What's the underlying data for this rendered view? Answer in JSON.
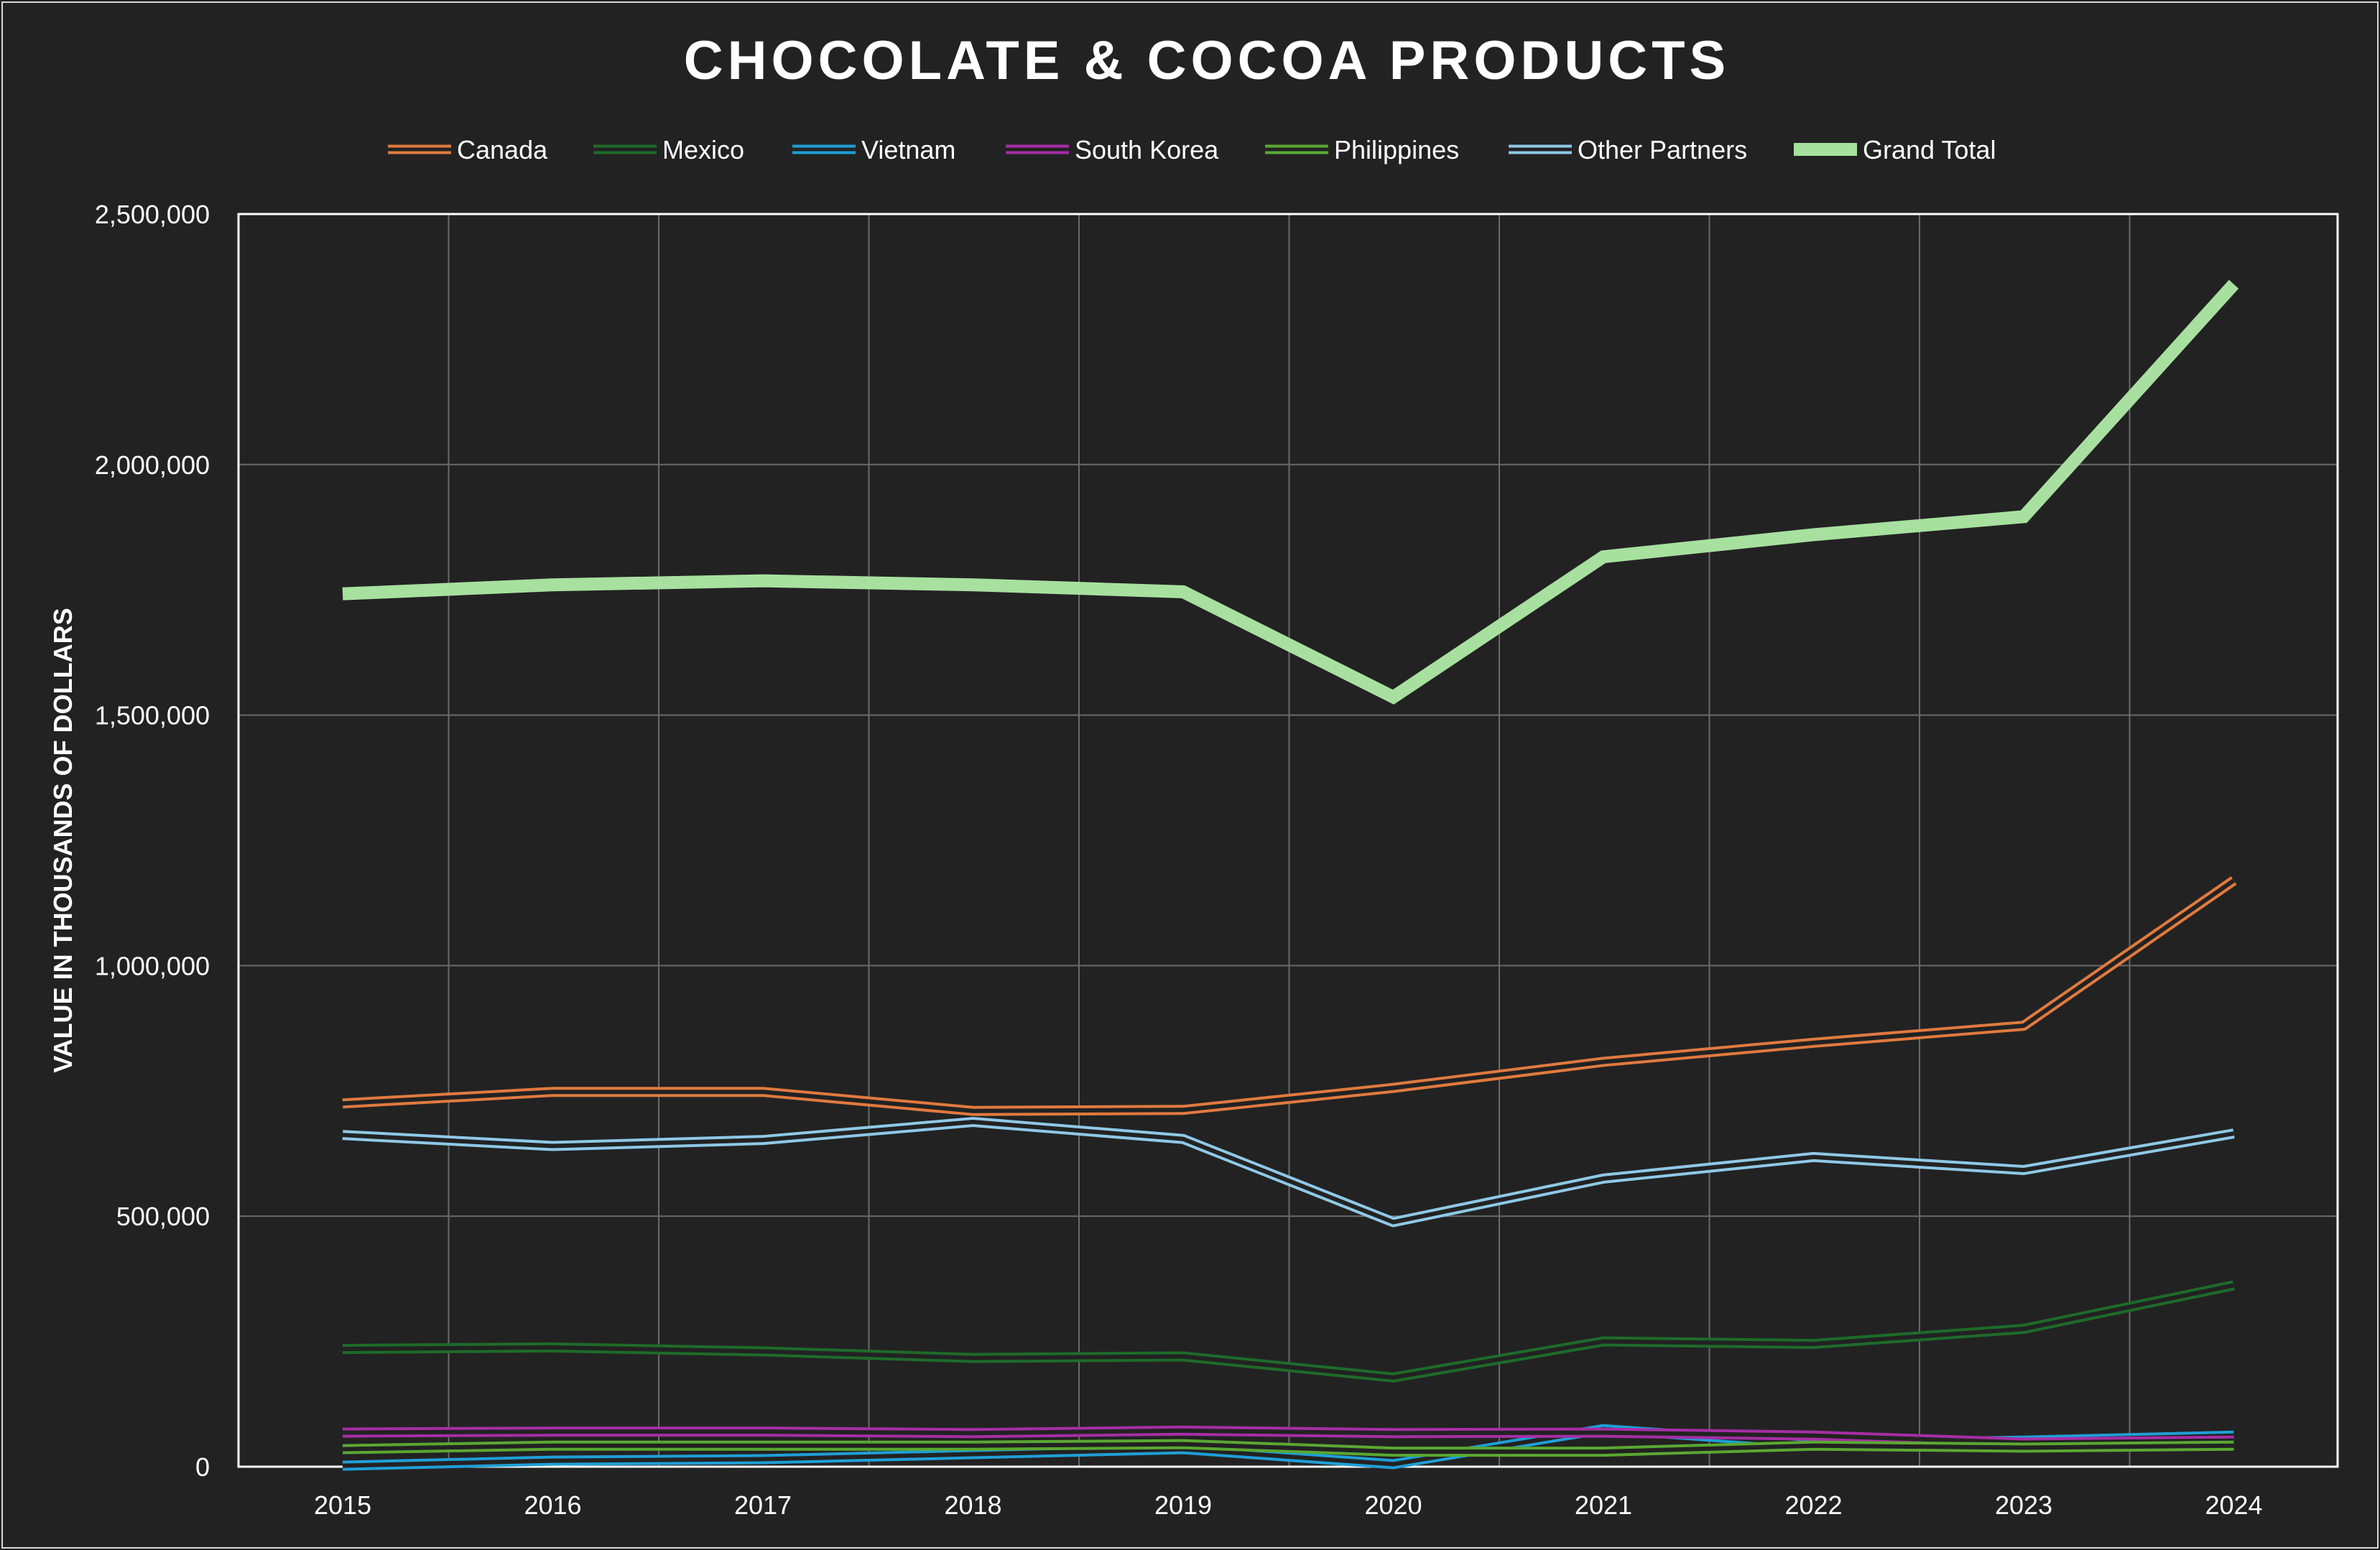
{
  "chart_data": {
    "type": "line",
    "title": "CHOCOLATE & COCOA PRODUCTS",
    "xlabel": "",
    "ylabel": "VALUE IN THOUSANDS OF DOLLARS",
    "x": [
      "2015",
      "2016",
      "2017",
      "2018",
      "2019",
      "2020",
      "2021",
      "2022",
      "2023",
      "2024"
    ],
    "ylim": [
      0,
      2500000
    ],
    "yticks": [
      0,
      500000,
      1000000,
      1500000,
      2000000,
      2500000
    ],
    "ytick_labels": [
      "0",
      "500,000",
      "1,000,000",
      "1,500,000",
      "2,000,000",
      "2,500,000"
    ],
    "grid": true,
    "legend_position": "top",
    "series": [
      {
        "name": "Canada",
        "color": "#e07a3f",
        "values": [
          725000,
          748000,
          748000,
          710000,
          712000,
          756000,
          808000,
          846000,
          880000,
          1170000
        ]
      },
      {
        "name": "Mexico",
        "color": "#1e6b2a",
        "values": [
          235000,
          238000,
          230000,
          217000,
          220000,
          178000,
          250000,
          245000,
          275000,
          362000
        ]
      },
      {
        "name": "Vietnam",
        "color": "#1f9fd6",
        "values": [
          2000,
          12000,
          15000,
          25000,
          35000,
          5000,
          75000,
          45000,
          52000,
          62000
        ]
      },
      {
        "name": "South Korea",
        "color": "#a52ea5",
        "values": [
          68000,
          70000,
          70000,
          67000,
          72000,
          67000,
          68000,
          62000,
          48000,
          52000
        ]
      },
      {
        "name": "Philippines",
        "color": "#5aa832",
        "values": [
          35000,
          42000,
          42000,
          42000,
          45000,
          30000,
          30000,
          42000,
          38000,
          42000
        ]
      },
      {
        "name": "Other Partners",
        "color": "#8fc8e6",
        "values": [
          662000,
          640000,
          652000,
          688000,
          654000,
          488000,
          575000,
          618000,
          592000,
          665000
        ]
      },
      {
        "name": "Grand Total",
        "color": "#a8e0a0",
        "values": [
          1742000,
          1760000,
          1768000,
          1760000,
          1746000,
          1536000,
          1816000,
          1860000,
          1896000,
          2360000
        ]
      }
    ]
  }
}
